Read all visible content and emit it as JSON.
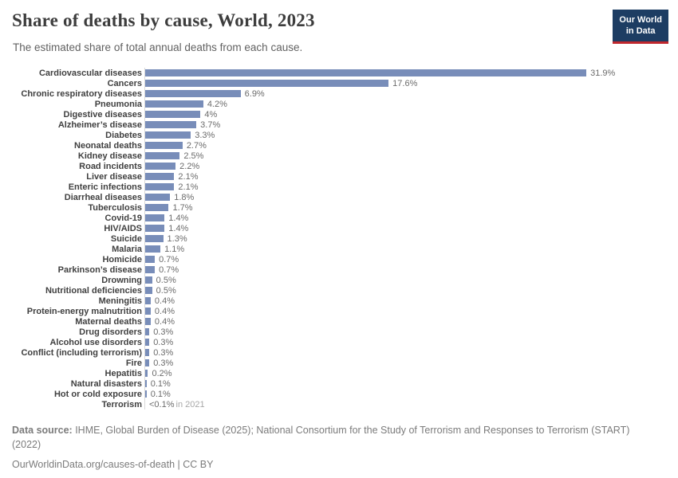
{
  "header": {
    "title": "Share of deaths by cause, World, 2023",
    "subtitle": "The estimated share of total annual deaths from each cause.",
    "logo": {
      "line1": "Our World",
      "line2": "in Data"
    }
  },
  "chart_data": {
    "type": "bar",
    "orientation": "horizontal",
    "title": "Share of deaths by cause, World, 2023",
    "xlabel": "",
    "ylabel": "",
    "xlim": [
      0,
      33
    ],
    "grid": false,
    "legend": false,
    "bar_color": "#788db9",
    "axis_line_color": "#d9d9d9",
    "categories": [
      "Cardiovascular diseases",
      "Cancers",
      "Chronic respiratory diseases",
      "Pneumonia",
      "Digestive diseases",
      "Alzheimer’s disease",
      "Diabetes",
      "Neonatal deaths",
      "Kidney disease",
      "Road incidents",
      "Liver disease",
      "Enteric infections",
      "Diarrheal diseases",
      "Tuberculosis",
      "Covid-19",
      "HIV/AIDS",
      "Suicide",
      "Malaria",
      "Homicide",
      "Parkinson’s disease",
      "Drowning",
      "Nutritional deficiencies",
      "Meningitis",
      "Protein-energy malnutrition",
      "Maternal deaths",
      "Drug disorders",
      "Alcohol use disorders",
      "Conflict (including terrorism)",
      "Fire",
      "Hepatitis",
      "Natural disasters",
      "Hot or cold exposure",
      "Terrorism"
    ],
    "values": [
      31.9,
      17.6,
      6.9,
      4.2,
      4,
      3.7,
      3.3,
      2.7,
      2.5,
      2.2,
      2.1,
      2.1,
      1.8,
      1.7,
      1.4,
      1.4,
      1.3,
      1.1,
      0.7,
      0.7,
      0.5,
      0.5,
      0.4,
      0.4,
      0.4,
      0.3,
      0.3,
      0.3,
      0.3,
      0.2,
      0.1,
      0.1,
      0
    ],
    "value_labels": [
      "31.9%",
      "17.6%",
      "6.9%",
      "4.2%",
      "4%",
      "3.7%",
      "3.3%",
      "2.7%",
      "2.5%",
      "2.2%",
      "2.1%",
      "2.1%",
      "1.8%",
      "1.7%",
      "1.4%",
      "1.4%",
      "1.3%",
      "1.1%",
      "0.7%",
      "0.7%",
      "0.5%",
      "0.5%",
      "0.4%",
      "0.4%",
      "0.4%",
      "0.3%",
      "0.3%",
      "0.3%",
      "0.3%",
      "0.2%",
      "0.1%",
      "0.1%",
      "<0.1%"
    ],
    "annotations": [
      {
        "category": "Terrorism",
        "text": "in 2021"
      }
    ]
  },
  "footer": {
    "source_label": "Data source:",
    "source_text": " IHME, Global Burden of Disease (2025); National Consortium for the Study of Terrorism and Responses to Terrorism (START) (2022)",
    "license_text": "OurWorldinData.org/causes-of-death | CC BY"
  },
  "colors": {
    "title": "#3d3d3d",
    "subtitle": "#616161",
    "category_label": "#404040",
    "value_label": "#6b6b6b",
    "annotation": "#a8a8a8",
    "footer": "#7b7b7b",
    "logo_bg": "#1d3d63",
    "logo_accent": "#c0272d"
  }
}
